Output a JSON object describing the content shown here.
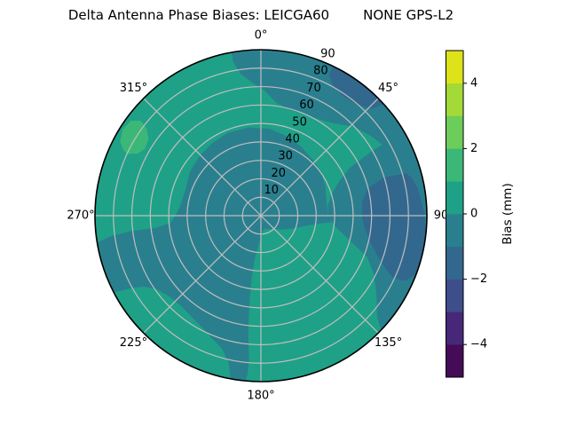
{
  "title": {
    "left": "Delta Antenna Phase Biases: LEICGA60",
    "right": "NONE GPS-L2"
  },
  "chart_data": {
    "type": "heatmap",
    "subtype": "polar_filled_contour",
    "title": "Delta Antenna Phase Biases: LEICGA60    NONE GPS-L2",
    "r_max": 90,
    "radial_ticks": [
      10,
      20,
      30,
      40,
      50,
      60,
      70,
      80,
      90
    ],
    "radial_tick_labels": [
      "10",
      "20",
      "30",
      "40",
      "50",
      "60",
      "70",
      "80",
      "90"
    ],
    "radial_label_angle_deg": 22.5,
    "angular_labels": [
      {
        "deg": 0,
        "label": "0°"
      },
      {
        "deg": 45,
        "label": "45°"
      },
      {
        "deg": 90,
        "label": "90"
      },
      {
        "deg": 135,
        "label": "135°"
      },
      {
        "deg": 180,
        "label": "180°"
      },
      {
        "deg": 225,
        "label": "225°"
      },
      {
        "deg": 270,
        "label": "270°"
      },
      {
        "deg": 315,
        "label": "315°"
      }
    ],
    "grid": true,
    "grid_color": "#bfbfbf",
    "spine_color": "#000000",
    "levels_mm": [
      -5,
      -4,
      -3,
      -2,
      -1,
      0,
      1,
      2,
      3,
      4,
      5
    ],
    "base_region": {
      "value_range": [
        0,
        1
      ],
      "color": "#1fa187"
    },
    "regions": [
      {
        "value_range": [
          -1,
          0
        ],
        "color": "#2a7f8e",
        "polygons": [
          [
            [
              350,
              92
            ],
            [
              0,
              92
            ],
            [
              10,
              92
            ],
            [
              20,
              92
            ],
            [
              30,
              92
            ],
            [
              40,
              92
            ],
            [
              50,
              92
            ],
            [
              62,
              92
            ],
            [
              62,
              78
            ],
            [
              54,
              74
            ],
            [
              46,
              70
            ],
            [
              38,
              64
            ],
            [
              30,
              61
            ],
            [
              22,
              60
            ],
            [
              14,
              60
            ],
            [
              8,
              62
            ],
            [
              2,
              68
            ],
            [
              357,
              72
            ],
            [
              352,
              78
            ],
            [
              350,
              85
            ]
          ],
          [
            [
              60,
              92
            ],
            [
              70,
              92
            ],
            [
              80,
              92
            ],
            [
              90,
              92
            ],
            [
              100,
              92
            ],
            [
              110,
              92
            ],
            [
              120,
              92
            ],
            [
              128,
              92
            ],
            [
              134,
              92
            ],
            [
              131,
              84
            ],
            [
              124,
              76
            ],
            [
              117,
              69
            ],
            [
              111,
              62
            ],
            [
              105,
              50
            ],
            [
              98,
              41
            ],
            [
              90,
              37
            ],
            [
              82,
              37
            ],
            [
              74,
              40
            ],
            [
              67,
              46
            ],
            [
              62,
              55
            ],
            [
              60,
              70
            ]
          ],
          [
            [
              290,
              43
            ],
            [
              302,
              45
            ],
            [
              314,
              46
            ],
            [
              326,
              47
            ],
            [
              338,
              48
            ],
            [
              352,
              48
            ],
            [
              6,
              47
            ],
            [
              18,
              45
            ],
            [
              30,
              43
            ],
            [
              42,
              41
            ],
            [
              54,
              40
            ],
            [
              66,
              38
            ],
            [
              78,
              36
            ],
            [
              88,
              36
            ],
            [
              95,
              38
            ],
            [
              97,
              32
            ],
            [
              102,
              25
            ],
            [
              110,
              19
            ],
            [
              121,
              14
            ],
            [
              134,
              10
            ],
            [
              148,
              8
            ],
            [
              162,
              7
            ],
            [
              174,
              8
            ],
            [
              181,
              11
            ],
            [
              186,
              16
            ],
            [
              189,
              24
            ],
            [
              189,
              34
            ],
            [
              188,
              46
            ],
            [
              187,
              58
            ],
            [
              186,
              68
            ],
            [
              185,
              78
            ],
            [
              185,
              86
            ],
            [
              186,
              92
            ],
            [
              190,
              92
            ],
            [
              192,
              82
            ],
            [
              196,
              75
            ],
            [
              202,
              71
            ],
            [
              208,
              68
            ],
            [
              215,
              66
            ],
            [
              222,
              65
            ],
            [
              229,
              66
            ],
            [
              235,
              69
            ],
            [
              239,
              74
            ],
            [
              241,
              80
            ],
            [
              242,
              86
            ],
            [
              243,
              92
            ],
            [
              250,
              92
            ],
            [
              256,
              92
            ],
            [
              260,
              92
            ],
            [
              262,
              82
            ],
            [
              263,
              70
            ],
            [
              263,
              58
            ],
            [
              265,
              49
            ],
            [
              270,
              46
            ],
            [
              276,
              44
            ],
            [
              283,
              43
            ]
          ]
        ]
      },
      {
        "value_range": [
          -2,
          -1
        ],
        "color": "#33688e",
        "polygons": [
          [
            [
              74,
              82
            ],
            [
              73,
              70
            ],
            [
              76,
              60
            ],
            [
              82,
              56
            ],
            [
              90,
              55
            ],
            [
              97,
              57
            ],
            [
              103,
              61
            ],
            [
              108,
              66
            ],
            [
              112,
              72
            ],
            [
              115,
              79
            ],
            [
              114,
              86
            ],
            [
              110,
              90
            ],
            [
              104,
              92
            ],
            [
              96,
              90
            ],
            [
              88,
              88
            ],
            [
              80,
              86
            ],
            [
              76,
              84
            ]
          ],
          [
            [
              26,
              92
            ],
            [
              32,
              92
            ],
            [
              38,
              92
            ],
            [
              44,
              92
            ],
            [
              48,
              92
            ],
            [
              46,
              84
            ],
            [
              41,
              80
            ],
            [
              35,
              79
            ],
            [
              29,
              81
            ],
            [
              26,
              85
            ]
          ]
        ]
      },
      {
        "value_range": [
          1,
          2
        ],
        "color": "#3bb877",
        "polygons": [
          [
            [
              295,
              80
            ],
            [
              297,
              75
            ],
            [
              300,
              73
            ],
            [
              304,
              74
            ],
            [
              307,
              78
            ],
            [
              308,
              83
            ],
            [
              306,
              87
            ],
            [
              302,
              88
            ],
            [
              298,
              86
            ],
            [
              296,
              83
            ]
          ]
        ]
      }
    ],
    "colorbar": {
      "label": "Bias (mm)",
      "range_mm": [
        -5,
        5
      ],
      "segment_colors_bottom_to_top": [
        "#450b57",
        "#472878",
        "#3d4e8a",
        "#33688e",
        "#2a7f8e",
        "#1fa187",
        "#3bb877",
        "#6ccd5a",
        "#a3da37",
        "#dde318"
      ],
      "ticks": [
        {
          "value": -4,
          "label": "−4"
        },
        {
          "value": -2,
          "label": "−2"
        },
        {
          "value": 0,
          "label": "0"
        },
        {
          "value": 2,
          "label": "2"
        },
        {
          "value": 4,
          "label": "4"
        }
      ]
    }
  }
}
